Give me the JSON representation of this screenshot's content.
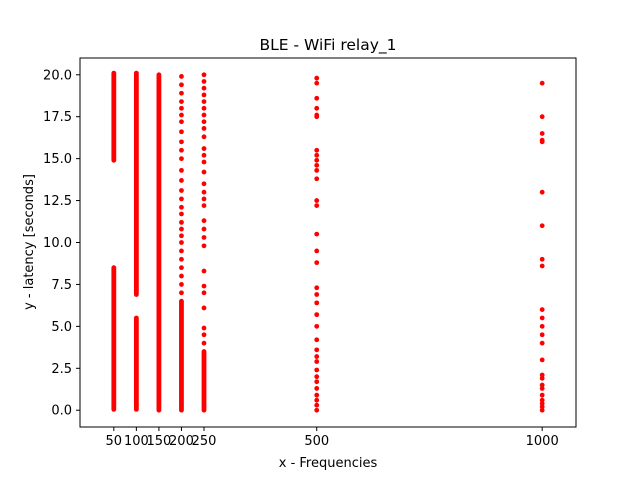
{
  "chart_data": {
    "type": "scatter",
    "title": "BLE - WiFi relay_1",
    "xlabel": "x - Frequencies",
    "ylabel": "y - latency [seconds]",
    "xlim": [
      -25,
      1075
    ],
    "ylim": [
      -1.0,
      21.0
    ],
    "x_ticks": [
      50,
      100,
      150,
      200,
      250,
      500,
      1000
    ],
    "x_tick_labels": [
      "50",
      "100",
      "150",
      "200",
      "250",
      "500",
      "1000"
    ],
    "y_ticks": [
      0.0,
      2.5,
      5.0,
      7.5,
      10.0,
      12.5,
      15.0,
      17.5,
      20.0
    ],
    "y_tick_labels": [
      "0.0",
      "2.5",
      "5.0",
      "7.5",
      "10.0",
      "12.5",
      "15.0",
      "17.5",
      "20.0"
    ],
    "grid": false,
    "marker_color": "#ff0000",
    "series": [
      {
        "x": 50,
        "ranges": [
          [
            0.05,
            8.5
          ],
          [
            14.9,
            20.1
          ]
        ],
        "points": []
      },
      {
        "x": 100,
        "ranges": [
          [
            0.05,
            5.5
          ],
          [
            6.9,
            20.1
          ]
        ],
        "points": []
      },
      {
        "x": 150,
        "ranges": [
          [
            0.0,
            20.0
          ]
        ],
        "points": []
      },
      {
        "x": 200,
        "ranges": [
          [
            0.0,
            6.5
          ]
        ],
        "points": [
          7.0,
          7.5,
          8.0,
          8.5,
          9.0,
          9.5,
          10.0,
          10.4,
          10.8,
          11.2,
          11.7,
          12.1,
          12.6,
          13.1,
          13.7,
          14.3,
          15.0,
          15.5,
          16.0,
          16.6,
          17.2,
          17.6,
          18.0,
          18.4,
          18.9,
          19.4,
          19.9
        ]
      },
      {
        "x": 250,
        "ranges": [
          [
            0.0,
            3.5
          ]
        ],
        "points": [
          4.0,
          4.5,
          4.9,
          6.1,
          7.0,
          7.4,
          8.3,
          9.8,
          10.3,
          10.8,
          11.3,
          12.2,
          12.6,
          13.0,
          13.5,
          14.2,
          14.8,
          15.2,
          15.6,
          16.3,
          16.8,
          17.2,
          17.6,
          18.0,
          18.4,
          18.8,
          19.2,
          19.6,
          20.0
        ]
      },
      {
        "x": 500,
        "ranges": [],
        "points": [
          0.0,
          0.3,
          0.6,
          0.9,
          1.3,
          1.7,
          2.0,
          2.4,
          2.9,
          3.2,
          3.6,
          4.2,
          5.0,
          5.7,
          6.4,
          6.9,
          7.3,
          8.8,
          9.5,
          10.5,
          12.2,
          12.5,
          13.8,
          14.3,
          14.6,
          14.9,
          15.2,
          15.5,
          17.5,
          17.6,
          18.0,
          18.6,
          19.5,
          19.8
        ]
      },
      {
        "x": 1000,
        "ranges": [],
        "points": [
          0.0,
          0.2,
          0.4,
          0.6,
          0.9,
          1.3,
          1.5,
          1.9,
          2.1,
          3.0,
          4.0,
          4.5,
          5.0,
          5.5,
          6.0,
          8.6,
          9.0,
          11.0,
          13.0,
          16.0,
          16.1,
          16.5,
          17.5,
          19.5
        ]
      }
    ]
  }
}
